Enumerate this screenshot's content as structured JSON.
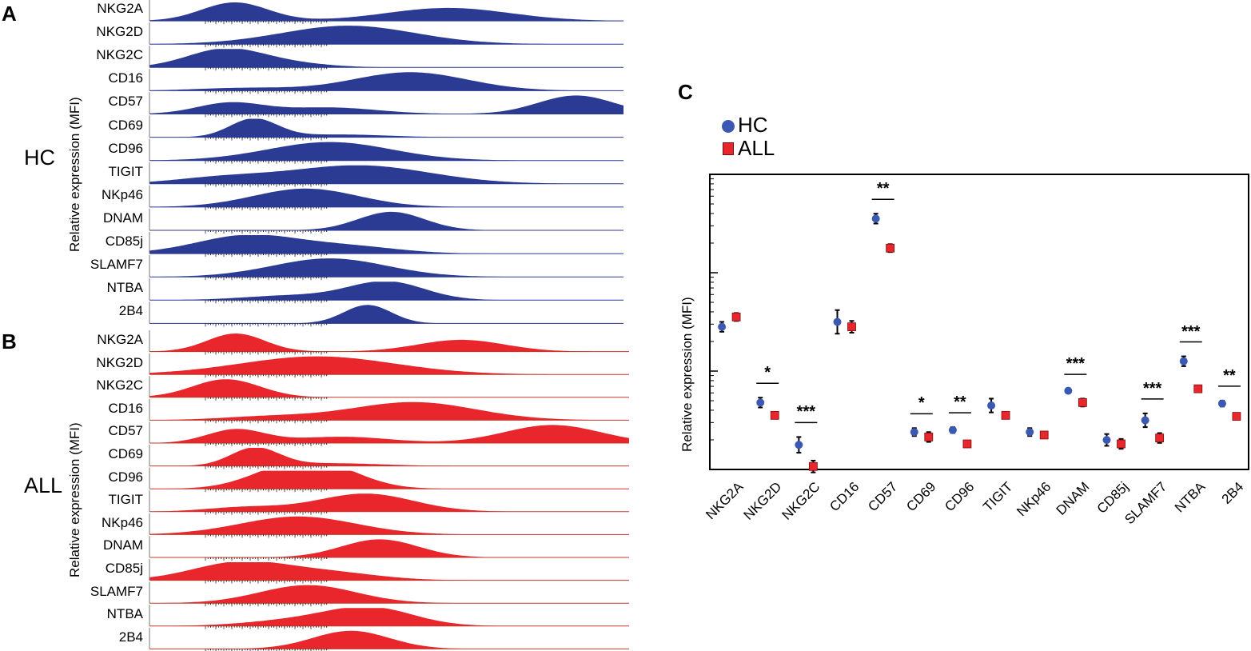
{
  "panels": {
    "a": "A",
    "b": "B",
    "c": "C"
  },
  "groups": {
    "hc": "HC",
    "all": "ALL"
  },
  "y_axis_label": "Relative expression (MFI)",
  "markers": [
    "NKG2A",
    "NKG2D",
    "NKG2C",
    "CD16",
    "CD57",
    "CD69",
    "CD96",
    "TIGIT",
    "NKp46",
    "DNAM",
    "CD85j",
    "SLAMF7",
    "NTBA",
    "2B4"
  ],
  "colors": {
    "hc": "#2b3a93",
    "all": "#e8262b",
    "hc_point": "#3b59b2"
  },
  "chart_data": [
    {
      "type": "area",
      "title": "",
      "group": "HC",
      "ylabel": "Relative expression (MFI)",
      "series": [
        {
          "name": "NKG2A",
          "peaks": [
            [
              0.18,
              1.0,
              0.07
            ],
            [
              0.63,
              0.7,
              0.13
            ]
          ]
        },
        {
          "name": "NKG2D",
          "peaks": [
            [
              0.42,
              1.0,
              0.14
            ]
          ]
        },
        {
          "name": "NKG2C",
          "peaks": [
            [
              0.16,
              1.0,
              0.08
            ],
            [
              0.3,
              0.2,
              0.08
            ]
          ]
        },
        {
          "name": "CD16",
          "peaks": [
            [
              0.55,
              1.0,
              0.12
            ],
            [
              0.2,
              0.15,
              0.1
            ]
          ]
        },
        {
          "name": "CD57",
          "peaks": [
            [
              0.17,
              0.6,
              0.07
            ],
            [
              0.38,
              0.35,
              0.1
            ],
            [
              0.9,
              1.0,
              0.08
            ]
          ]
        },
        {
          "name": "CD69",
          "peaks": [
            [
              0.22,
              1.0,
              0.05
            ],
            [
              0.4,
              0.15,
              0.1
            ]
          ]
        },
        {
          "name": "CD96",
          "peaks": [
            [
              0.38,
              1.0,
              0.13
            ]
          ]
        },
        {
          "name": "TIGIT",
          "peaks": [
            [
              0.44,
              1.0,
              0.15
            ],
            [
              0.15,
              0.3,
              0.1
            ]
          ]
        },
        {
          "name": "NKp46",
          "peaks": [
            [
              0.33,
              1.0,
              0.11
            ]
          ]
        },
        {
          "name": "DNAM",
          "peaks": [
            [
              0.51,
              1.0,
              0.07
            ]
          ]
        },
        {
          "name": "CD85j",
          "peaks": [
            [
              0.21,
              1.0,
              0.11
            ],
            [
              0.43,
              0.35,
              0.1
            ]
          ]
        },
        {
          "name": "SLAMF7",
          "peaks": [
            [
              0.38,
              1.0,
              0.12
            ]
          ]
        },
        {
          "name": "NTBA",
          "peaks": [
            [
              0.5,
              1.0,
              0.08
            ],
            [
              0.3,
              0.25,
              0.1
            ]
          ]
        },
        {
          "name": "2B4",
          "peaks": [
            [
              0.46,
              1.0,
              0.05
            ]
          ]
        }
      ]
    },
    {
      "type": "area",
      "title": "",
      "group": "ALL",
      "ylabel": "Relative expression (MFI)",
      "series": [
        {
          "name": "NKG2A",
          "peaks": [
            [
              0.18,
              1.0,
              0.06
            ],
            [
              0.65,
              0.65,
              0.09
            ]
          ]
        },
        {
          "name": "NKG2D",
          "peaks": [
            [
              0.35,
              1.0,
              0.16
            ]
          ]
        },
        {
          "name": "NKG2C",
          "peaks": [
            [
              0.16,
              1.0,
              0.07
            ]
          ]
        },
        {
          "name": "CD16",
          "peaks": [
            [
              0.55,
              1.0,
              0.13
            ],
            [
              0.25,
              0.2,
              0.1
            ]
          ]
        },
        {
          "name": "CD57",
          "peaks": [
            [
              0.18,
              0.75,
              0.06
            ],
            [
              0.4,
              0.35,
              0.1
            ],
            [
              0.84,
              1.0,
              0.1
            ]
          ]
        },
        {
          "name": "CD69",
          "peaks": [
            [
              0.22,
              1.0,
              0.05
            ],
            [
              0.38,
              0.15,
              0.1
            ]
          ]
        },
        {
          "name": "CD96",
          "peaks": [
            [
              0.28,
              0.9,
              0.08
            ],
            [
              0.37,
              1.0,
              0.08
            ]
          ]
        },
        {
          "name": "TIGIT",
          "peaks": [
            [
              0.45,
              1.0,
              0.1
            ],
            [
              0.2,
              0.25,
              0.08
            ]
          ]
        },
        {
          "name": "NKp46",
          "peaks": [
            [
              0.31,
              1.0,
              0.12
            ]
          ]
        },
        {
          "name": "DNAM",
          "peaks": [
            [
              0.48,
              1.0,
              0.08
            ]
          ]
        },
        {
          "name": "CD85j",
          "peaks": [
            [
              0.19,
              1.0,
              0.1
            ],
            [
              0.38,
              0.4,
              0.1
            ]
          ]
        },
        {
          "name": "SLAMF7",
          "peaks": [
            [
              0.33,
              1.0,
              0.1
            ]
          ]
        },
        {
          "name": "NTBA",
          "peaks": [
            [
              0.46,
              1.0,
              0.09
            ],
            [
              0.3,
              0.3,
              0.1
            ]
          ]
        },
        {
          "name": "2B4",
          "peaks": [
            [
              0.42,
              1.0,
              0.08
            ]
          ]
        }
      ]
    },
    {
      "type": "scatter",
      "title": "",
      "xlabel": "",
      "ylabel": "Relative expression (MFI)",
      "categories": [
        "NKG2A",
        "NKG2D",
        "NKG2C",
        "CD16",
        "CD57",
        "CD69",
        "CD96",
        "TIGIT",
        "NKp46",
        "DNAM",
        "CD85j",
        "SLAMF7",
        "NTBA",
        "2B4"
      ],
      "ylim": [
        0,
        3
      ],
      "yscale": "log",
      "legend": [
        {
          "name": "HC"
        },
        {
          "name": "ALL"
        }
      ],
      "legend_position": "top-left",
      "series": [
        {
          "name": "HC",
          "values": [
            1.45,
            0.68,
            0.25,
            1.5,
            2.55,
            0.38,
            0.4,
            0.65,
            0.38,
            0.8,
            0.3,
            0.5,
            1.1,
            0.67
          ],
          "errors": [
            0.05,
            0.05,
            0.08,
            0.12,
            0.05,
            0.04,
            0.03,
            0.07,
            0.04,
            0.02,
            0.06,
            0.07,
            0.05,
            0.03
          ]
        },
        {
          "name": "ALL",
          "values": [
            1.55,
            0.55,
            0.03,
            1.45,
            2.25,
            0.33,
            0.26,
            0.55,
            0.35,
            0.68,
            0.26,
            0.32,
            0.82,
            0.54
          ],
          "errors": [
            0.04,
            0.02,
            0.06,
            0.06,
            0.04,
            0.05,
            0.02,
            0.02,
            0.03,
            0.04,
            0.05,
            0.05,
            0.02,
            0.02
          ]
        }
      ],
      "significance": [
        {
          "category": "NKG2D",
          "label": "*"
        },
        {
          "category": "NKG2C",
          "label": "***"
        },
        {
          "category": "CD57",
          "label": "**"
        },
        {
          "category": "CD69",
          "label": "*"
        },
        {
          "category": "CD96",
          "label": "**"
        },
        {
          "category": "DNAM",
          "label": "***"
        },
        {
          "category": "SLAMF7",
          "label": "***"
        },
        {
          "category": "NTBA",
          "label": "***"
        },
        {
          "category": "2B4",
          "label": "**"
        }
      ]
    }
  ]
}
